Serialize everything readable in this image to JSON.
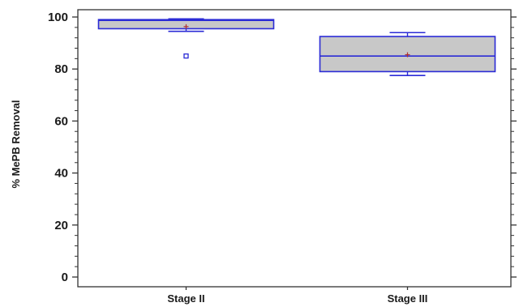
{
  "chart_data": {
    "type": "box",
    "ylabel": "% MePB Removal",
    "xlabel": "",
    "ylim": [
      0,
      100
    ],
    "yticks": [
      "0",
      "20",
      "40",
      "60",
      "80",
      "100"
    ],
    "categories": [
      "Stage II",
      "Stage III"
    ],
    "boxes": [
      {
        "name": "Stage II",
        "whisker_low": 94.5,
        "q1": 95.5,
        "median": 98.7,
        "q3": 99.0,
        "whisker_high": 99.3,
        "mean": 96.3,
        "outliers": [
          85
        ]
      },
      {
        "name": "Stage III",
        "whisker_low": 77.5,
        "q1": 79.0,
        "median": 85.0,
        "q3": 92.5,
        "whisker_high": 94.0,
        "mean": 85.5,
        "outliers": []
      }
    ],
    "grid": false,
    "colors": {
      "box_fill": "#c8c8c8",
      "box_stroke": "#2b2bd6",
      "mean_marker": "#b03030",
      "axis": "#333333"
    }
  }
}
